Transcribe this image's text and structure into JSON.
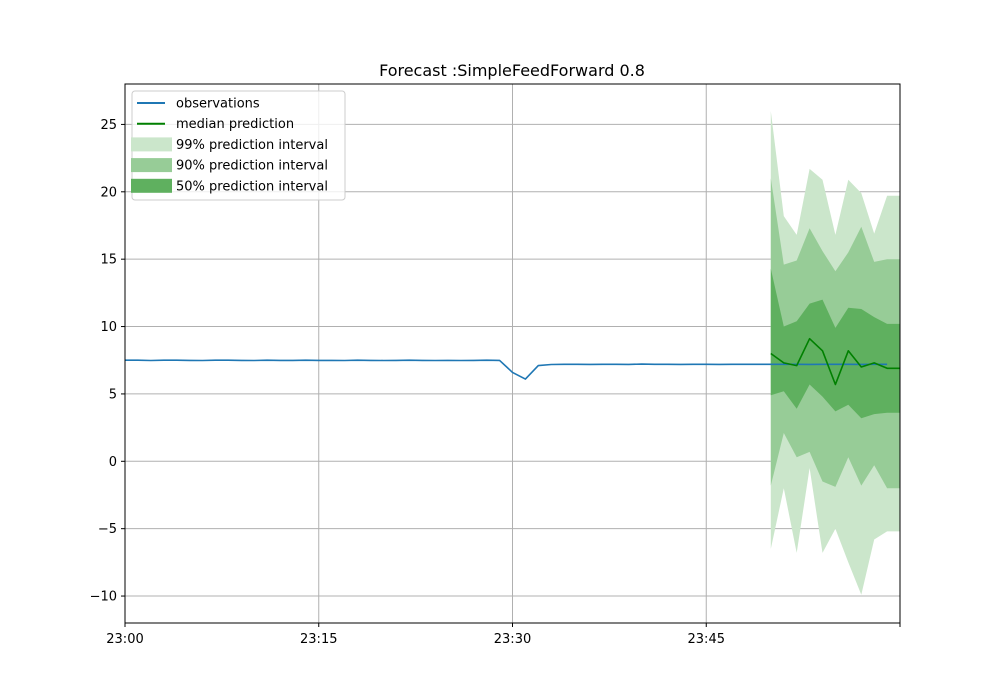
{
  "chart_data": {
    "type": "line",
    "title": "Forecast :SimpleFeedForward 0.8",
    "xlabel": "",
    "ylabel": "",
    "x_axis": {
      "unit": "minutes",
      "range": [
        "23:00",
        "24:00"
      ],
      "ticks": [
        {
          "at": "23:00",
          "label": "23:00"
        },
        {
          "at": "23:15",
          "label": "23:15"
        },
        {
          "at": "23:30",
          "label": "23:30"
        },
        {
          "at": "23:45",
          "label": "23:45"
        },
        {
          "at": "24:00",
          "label": ""
        }
      ]
    },
    "y_axis": {
      "range": [
        -12,
        28
      ],
      "ticks": [
        {
          "value": -10,
          "label": "−10"
        },
        {
          "value": -5,
          "label": "−5"
        },
        {
          "value": 0,
          "label": "0"
        },
        {
          "value": 5,
          "label": "5"
        },
        {
          "value": 10,
          "label": "10"
        },
        {
          "value": 15,
          "label": "15"
        },
        {
          "value": 20,
          "label": "20"
        },
        {
          "value": 25,
          "label": "25"
        }
      ]
    },
    "grid": true,
    "legend": {
      "position": "top-left",
      "entries": [
        {
          "label": "observations",
          "kind": "line",
          "color": "#1f77b4"
        },
        {
          "label": "median prediction",
          "kind": "line",
          "color": "#008000"
        },
        {
          "label": "99% prediction interval",
          "kind": "band",
          "color": "#cbe6cb"
        },
        {
          "label": "90% prediction interval",
          "kind": "band",
          "color": "#97cc97"
        },
        {
          "label": "50% prediction interval",
          "kind": "band",
          "color": "#5fb05f"
        }
      ]
    },
    "observations": {
      "name": "observations",
      "color": "#1f77b4",
      "points": [
        [
          "23:00",
          7.5
        ],
        [
          "23:01",
          7.5
        ],
        [
          "23:02",
          7.48
        ],
        [
          "23:03",
          7.5
        ],
        [
          "23:04",
          7.5
        ],
        [
          "23:05",
          7.49
        ],
        [
          "23:06",
          7.48
        ],
        [
          "23:07",
          7.5
        ],
        [
          "23:08",
          7.5
        ],
        [
          "23:09",
          7.49
        ],
        [
          "23:10",
          7.48
        ],
        [
          "23:11",
          7.5
        ],
        [
          "23:12",
          7.49
        ],
        [
          "23:13",
          7.49
        ],
        [
          "23:14",
          7.5
        ],
        [
          "23:15",
          7.49
        ],
        [
          "23:16",
          7.49
        ],
        [
          "23:17",
          7.48
        ],
        [
          "23:18",
          7.5
        ],
        [
          "23:19",
          7.49
        ],
        [
          "23:20",
          7.48
        ],
        [
          "23:21",
          7.49
        ],
        [
          "23:22",
          7.5
        ],
        [
          "23:23",
          7.49
        ],
        [
          "23:24",
          7.48
        ],
        [
          "23:25",
          7.49
        ],
        [
          "23:26",
          7.48
        ],
        [
          "23:27",
          7.49
        ],
        [
          "23:28",
          7.5
        ],
        [
          "23:29",
          7.49
        ],
        [
          "23:30",
          6.6
        ],
        [
          "23:31",
          6.1
        ],
        [
          "23:32",
          7.1
        ],
        [
          "23:33",
          7.18
        ],
        [
          "23:34",
          7.2
        ],
        [
          "23:35",
          7.2
        ],
        [
          "23:36",
          7.19
        ],
        [
          "23:37",
          7.2
        ],
        [
          "23:38",
          7.2
        ],
        [
          "23:39",
          7.19
        ],
        [
          "23:40",
          7.21
        ],
        [
          "23:41",
          7.2
        ],
        [
          "23:42",
          7.2
        ],
        [
          "23:43",
          7.19
        ],
        [
          "23:44",
          7.2
        ],
        [
          "23:45",
          7.2
        ],
        [
          "23:46",
          7.19
        ],
        [
          "23:47",
          7.2
        ],
        [
          "23:48",
          7.2
        ],
        [
          "23:49",
          7.2
        ],
        [
          "23:50",
          7.2
        ],
        [
          "23:51",
          7.2
        ],
        [
          "23:52",
          7.2
        ],
        [
          "23:53",
          7.19
        ],
        [
          "23:54",
          7.2
        ],
        [
          "23:55",
          7.2
        ],
        [
          "23:56",
          7.2
        ],
        [
          "23:57",
          7.19
        ],
        [
          "23:58",
          7.2
        ],
        [
          "23:59",
          7.2
        ]
      ]
    },
    "forecast": {
      "x": [
        "23:50",
        "23:51",
        "23:52",
        "23:53",
        "23:54",
        "23:55",
        "23:56",
        "23:57",
        "23:58",
        "23:59",
        "24:00"
      ],
      "median": {
        "name": "median prediction",
        "color": "#008000",
        "values": [
          8.0,
          7.3,
          7.1,
          9.1,
          8.2,
          5.7,
          8.2,
          7.0,
          7.3,
          6.9,
          6.9
        ]
      },
      "bands": [
        {
          "name": "99% prediction interval",
          "color": "#cbe6cb",
          "lower": [
            -6.5,
            -2.0,
            -6.8,
            -0.5,
            -6.8,
            -5.0,
            -7.5,
            -9.9,
            -5.8,
            -5.2,
            -5.2
          ],
          "upper": [
            26.0,
            18.2,
            16.8,
            21.7,
            20.9,
            16.8,
            20.9,
            19.9,
            16.9,
            19.7,
            19.7
          ]
        },
        {
          "name": "90% prediction interval",
          "color": "#97cc97",
          "lower": [
            -1.8,
            2.1,
            0.3,
            0.7,
            -1.5,
            -1.9,
            0.3,
            -1.8,
            -0.3,
            -2.0,
            -2.0
          ],
          "upper": [
            21.0,
            14.6,
            14.9,
            17.3,
            15.6,
            14.1,
            15.5,
            17.4,
            14.8,
            15.0,
            15.0
          ]
        },
        {
          "name": "50% prediction interval",
          "color": "#5fb05f",
          "lower": [
            4.9,
            5.2,
            3.9,
            5.7,
            4.8,
            3.7,
            4.2,
            3.2,
            3.5,
            3.6,
            3.6
          ],
          "upper": [
            14.3,
            10.0,
            10.4,
            11.7,
            12.0,
            9.9,
            11.4,
            11.3,
            10.7,
            10.2,
            10.2
          ]
        }
      ]
    }
  },
  "style": {
    "background": "#ffffff",
    "axis_color": "#000000",
    "grid_color": "#b0b0b0",
    "legend_border": "#cccccc"
  }
}
